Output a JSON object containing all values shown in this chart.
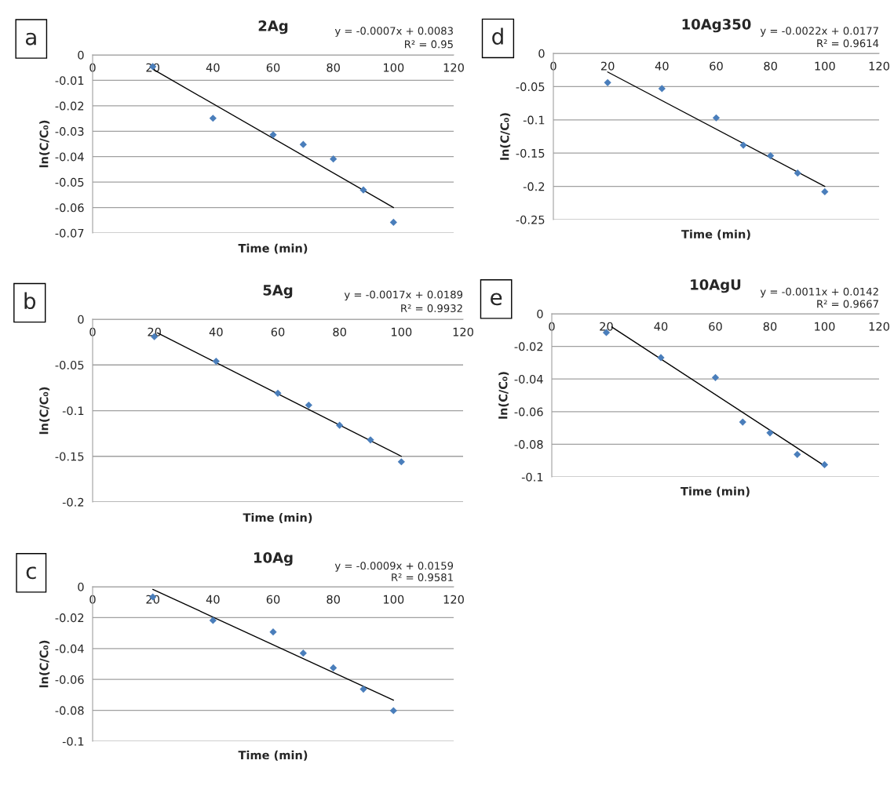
{
  "chart_data": [
    {
      "type": "scatter",
      "title": "2Ag",
      "xlabel": "Time (min)",
      "ylabel": "ln(C/C₀)",
      "annotations": [
        "a",
        "y = -0.0007x + 0.0083",
        "R² = 0.95"
      ],
      "xlim": [
        0,
        120
      ],
      "ylim": [
        -0.07,
        0
      ],
      "xticks": [
        0,
        20,
        40,
        60,
        80,
        100,
        120
      ],
      "yticks": [
        0,
        -0.01,
        -0.02,
        -0.03,
        -0.04,
        -0.05,
        -0.06,
        -0.07
      ],
      "grid": "y",
      "marker": "diamond",
      "series": [
        {
          "color": "#4a7ebb",
          "x": [
            20,
            40,
            60,
            70,
            80,
            90,
            100
          ],
          "values": [
            -0.0046,
            -0.0249,
            -0.0314,
            -0.0352,
            -0.0409,
            -0.0531,
            -0.0658
          ]
        },
        {
          "type": "line",
          "color": "#000000",
          "marker": "none",
          "x": [
            20,
            100
          ],
          "values": [
            -0.0056,
            -0.06
          ]
        }
      ]
    },
    {
      "type": "scatter",
      "title": "5Ag",
      "xlabel": "Time (min)",
      "ylabel": "ln(C/C₀)",
      "annotations": [
        "b",
        "y = -0.0017x + 0.0189",
        "R² = 0.9932"
      ],
      "xlim": [
        0,
        120
      ],
      "ylim": [
        -0.2,
        0
      ],
      "xticks": [
        0,
        20,
        40,
        60,
        80,
        100,
        120
      ],
      "yticks": [
        0,
        -0.05,
        -0.1,
        -0.15,
        -0.2
      ],
      "grid": "y",
      "marker": "diamond",
      "series": [
        {
          "color": "#4a7ebb",
          "x": [
            20,
            40,
            60,
            70,
            80,
            90,
            100
          ],
          "values": [
            -0.019,
            -0.046,
            -0.081,
            -0.094,
            -0.116,
            -0.132,
            -0.156
          ]
        },
        {
          "type": "line",
          "color": "#000000",
          "marker": "none",
          "x": [
            21,
            100
          ],
          "values": [
            -0.015,
            -0.15
          ]
        }
      ]
    },
    {
      "type": "scatter",
      "title": "10Ag",
      "xlabel": "Time (min)",
      "ylabel": "ln(C/C₀)",
      "annotations": [
        "c",
        "y = -0.0009x + 0.0159",
        "R² = 0.9581"
      ],
      "xlim": [
        0,
        120
      ],
      "ylim": [
        -0.1,
        0
      ],
      "xticks": [
        0,
        20,
        40,
        60,
        80,
        100,
        120
      ],
      "yticks": [
        0,
        -0.02,
        -0.04,
        -0.06,
        -0.08,
        -0.1
      ],
      "grid": "y",
      "marker": "diamond",
      "series": [
        {
          "color": "#4a7ebb",
          "x": [
            20,
            40,
            60,
            70,
            80,
            90,
            100
          ],
          "values": [
            -0.0066,
            -0.0218,
            -0.0293,
            -0.043,
            -0.0525,
            -0.0663,
            -0.0802
          ]
        },
        {
          "type": "line",
          "color": "#000000",
          "marker": "none",
          "x": [
            20,
            100
          ],
          "values": [
            -0.0017,
            -0.0734
          ]
        }
      ]
    },
    {
      "type": "scatter",
      "title": "10Ag350",
      "xlabel": "Time (min)",
      "ylabel": "ln(C/C₀)",
      "annotations": [
        "d",
        "y = -0.0022x + 0.0177",
        "R² = 0.9614"
      ],
      "xlim": [
        0,
        120
      ],
      "ylim": [
        -0.25,
        0
      ],
      "xticks": [
        0,
        20,
        40,
        60,
        80,
        100,
        120
      ],
      "yticks": [
        0,
        -0.05,
        -0.1,
        -0.15,
        -0.2,
        -0.25
      ],
      "grid": "y",
      "marker": "diamond",
      "series": [
        {
          "color": "#4a7ebb",
          "x": [
            20,
            40,
            60,
            70,
            80,
            90,
            100
          ],
          "values": [
            -0.044,
            -0.053,
            -0.097,
            -0.138,
            -0.154,
            -0.18,
            -0.208
          ]
        },
        {
          "type": "line",
          "color": "#000000",
          "marker": "none",
          "x": [
            20,
            100
          ],
          "values": [
            -0.028,
            -0.2
          ]
        }
      ]
    },
    {
      "type": "scatter",
      "title": "10AgU",
      "xlabel": "Time (min)",
      "ylabel": "ln(C/C₀)",
      "annotations": [
        "e",
        "y = -0.0011x + 0.0142",
        "R² = 0.9667"
      ],
      "xlim": [
        0,
        120
      ],
      "ylim": [
        -0.1,
        0
      ],
      "xticks": [
        0,
        20,
        40,
        60,
        80,
        100,
        120
      ],
      "yticks": [
        0,
        -0.02,
        -0.04,
        -0.06,
        -0.08,
        -0.1
      ],
      "grid": "y",
      "marker": "diamond",
      "series": [
        {
          "color": "#4a7ebb",
          "x": [
            20,
            40,
            60,
            70,
            80,
            90,
            100
          ],
          "values": [
            -0.0115,
            -0.0269,
            -0.0391,
            -0.0664,
            -0.073,
            -0.0862,
            -0.0925
          ]
        },
        {
          "type": "line",
          "color": "#000000",
          "marker": "none",
          "x": [
            22,
            100
          ],
          "values": [
            -0.0081,
            -0.0932
          ]
        }
      ]
    }
  ]
}
